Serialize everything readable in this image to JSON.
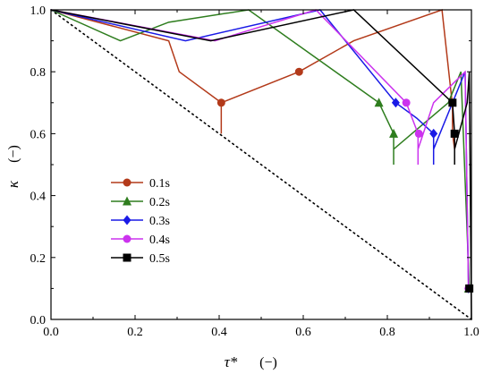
{
  "chart_data": {
    "type": "line",
    "xlabel": "τ*",
    "xunit": "(−)",
    "ylabel": "κ",
    "yunit": "(−)",
    "xlim": [
      0.0,
      1.0
    ],
    "ylim": [
      0.0,
      1.0
    ],
    "xticks": [
      "0.0",
      "0.2",
      "0.4",
      "0.6",
      "0.8",
      "1.0"
    ],
    "yticks": [
      "0.0",
      "0.2",
      "0.4",
      "0.6",
      "0.8",
      "1.0"
    ],
    "grid": false,
    "legend_position": "middle-left",
    "reference_line": {
      "style": "dotted",
      "x": [
        0.0,
        1.0
      ],
      "y": [
        1.0,
        0.0
      ]
    },
    "series": [
      {
        "name": "0.1s",
        "color": "#b33a1a",
        "marker": "circle",
        "x": [
          0.0,
          0.28,
          0.305,
          0.405,
          0.405,
          0.405,
          0.59,
          0.72,
          0.93,
          0.955,
          0.955,
          0.96
        ],
        "y": [
          1.0,
          0.9,
          0.8,
          0.7,
          0.6,
          0.7,
          0.8,
          0.9,
          1.0,
          0.69,
          0.6,
          0.55
        ],
        "marker_points": [
          [
            0.405,
            0.7
          ],
          [
            0.59,
            0.8
          ]
        ]
      },
      {
        "name": "0.2s",
        "color": "#2e7d1e",
        "marker": "triangle",
        "x": [
          0.0,
          0.165,
          0.28,
          0.47,
          0.78,
          0.815,
          0.815,
          0.815,
          0.945,
          0.975,
          0.995
        ],
        "y": [
          1.0,
          0.9,
          0.96,
          1.0,
          0.7,
          0.6,
          0.5,
          0.55,
          0.7,
          0.8,
          0.1
        ],
        "marker_points": [
          [
            0.78,
            0.7
          ],
          [
            0.815,
            0.6
          ],
          [
            0.993,
            0.1
          ]
        ]
      },
      {
        "name": "0.3s",
        "color": "#1a1ae6",
        "marker": "diamond",
        "x": [
          0.0,
          0.32,
          0.64,
          0.82,
          0.87,
          0.91,
          0.91,
          0.91,
          0.985,
          0.993
        ],
        "y": [
          1.0,
          0.9,
          1.0,
          0.7,
          0.65,
          0.6,
          0.5,
          0.55,
          0.8,
          0.1
        ],
        "marker_points": [
          [
            0.82,
            0.7
          ],
          [
            0.91,
            0.6
          ],
          [
            0.993,
            0.1
          ]
        ]
      },
      {
        "name": "0.4s",
        "color": "#cc33ee",
        "marker": "circle",
        "x": [
          0.0,
          0.39,
          0.63,
          0.845,
          0.873,
          0.873,
          0.873,
          0.91,
          0.985,
          0.993
        ],
        "y": [
          1.0,
          0.9,
          1.0,
          0.7,
          0.6,
          0.5,
          0.55,
          0.7,
          0.8,
          0.1
        ],
        "marker_points": [
          [
            0.845,
            0.7
          ],
          [
            0.875,
            0.6
          ],
          [
            0.993,
            0.1
          ]
        ]
      },
      {
        "name": "0.5s",
        "color": "#000000",
        "marker": "square",
        "x": [
          0.0,
          0.38,
          0.72,
          0.955,
          0.96,
          0.96,
          0.96,
          0.99,
          0.995,
          1.0
        ],
        "y": [
          1.0,
          0.9,
          1.0,
          0.7,
          0.6,
          0.5,
          0.55,
          0.7,
          0.8,
          0.0
        ],
        "marker_points": [
          [
            0.955,
            0.7
          ],
          [
            0.96,
            0.6
          ],
          [
            0.995,
            0.1
          ]
        ]
      }
    ]
  }
}
